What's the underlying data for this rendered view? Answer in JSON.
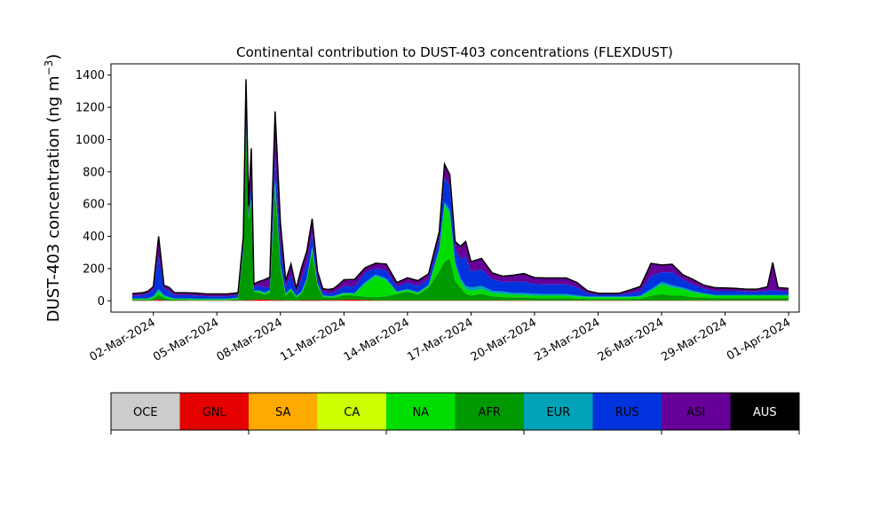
{
  "chart_data": {
    "type": "area",
    "stacked": true,
    "title": "Continental contribution to DUST-403 concentrations (FLEXDUST)",
    "ylabel": "DUST-403 concentration (ng m",
    "ylabel_sup": "−3",
    "ylabel_close": ")",
    "ylim": [
      -70,
      1470
    ],
    "yticks": [
      0,
      200,
      400,
      600,
      800,
      1000,
      1200,
      1400
    ],
    "xlim": [
      "2024-02-29T00:00",
      "2024-04-01T12:00"
    ],
    "xticks": [
      "2024-03-02",
      "2024-03-05",
      "2024-03-08",
      "2024-03-11",
      "2024-03-14",
      "2024-03-17",
      "2024-03-20",
      "2024-03-23",
      "2024-03-26",
      "2024-03-29",
      "2024-04-01"
    ],
    "xtick_labels": [
      "02-Mar-2024",
      "05-Mar-2024",
      "08-Mar-2024",
      "11-Mar-2024",
      "14-Mar-2024",
      "17-Mar-2024",
      "20-Mar-2024",
      "23-Mar-2024",
      "26-Mar-2024",
      "29-Mar-2024",
      "01-Apr-2024"
    ],
    "grid": false,
    "legend_position": "bottom-colorbar",
    "series_names": [
      "OCE",
      "GNL",
      "SA",
      "CA",
      "NA",
      "AFR",
      "EUR",
      "RUS",
      "ASI",
      "AUS"
    ],
    "series_colors": [
      "#cccccc",
      "#e50000",
      "#ffaa00",
      "#ccff00",
      "#00dd00",
      "#009900",
      "#00a3b8",
      "#0033dd",
      "#660099",
      "#000000"
    ],
    "legend_text_colors": [
      "#000000",
      "#000000",
      "#000000",
      "#000000",
      "#000000",
      "#000000",
      "#000000",
      "#000000",
      "#000000",
      "#ffffff"
    ],
    "stack_order": [
      "GNL",
      "AFR",
      "NA",
      "EUR",
      "RUS",
      "ASI"
    ],
    "x": [
      "2024-03-01T00:00",
      "2024-03-01T12:00",
      "2024-03-01T18:00",
      "2024-03-02T00:00",
      "2024-03-02T06:00",
      "2024-03-02T12:00",
      "2024-03-02T18:00",
      "2024-03-03T00:00",
      "2024-03-03T12:00",
      "2024-03-04T00:00",
      "2024-03-04T12:00",
      "2024-03-05T00:00",
      "2024-03-05T12:00",
      "2024-03-06T00:00",
      "2024-03-06T06:00",
      "2024-03-06T09:00",
      "2024-03-06T12:00",
      "2024-03-06T15:00",
      "2024-03-06T18:00",
      "2024-03-07T00:00",
      "2024-03-07T06:00",
      "2024-03-07T12:00",
      "2024-03-07T18:00",
      "2024-03-08T00:00",
      "2024-03-08T06:00",
      "2024-03-08T12:00",
      "2024-03-08T18:00",
      "2024-03-09T00:00",
      "2024-03-09T06:00",
      "2024-03-09T12:00",
      "2024-03-09T18:00",
      "2024-03-10T00:00",
      "2024-03-10T06:00",
      "2024-03-10T12:00",
      "2024-03-10T18:00",
      "2024-03-11T00:00",
      "2024-03-11T12:00",
      "2024-03-12T00:00",
      "2024-03-12T12:00",
      "2024-03-13T00:00",
      "2024-03-13T12:00",
      "2024-03-14T00:00",
      "2024-03-14T12:00",
      "2024-03-15T00:00",
      "2024-03-15T12:00",
      "2024-03-15T18:00",
      "2024-03-16T00:00",
      "2024-03-16T06:00",
      "2024-03-16T12:00",
      "2024-03-16T18:00",
      "2024-03-17T00:00",
      "2024-03-17T12:00",
      "2024-03-18T00:00",
      "2024-03-18T12:00",
      "2024-03-19T00:00",
      "2024-03-19T12:00",
      "2024-03-20T00:00",
      "2024-03-20T12:00",
      "2024-03-21T00:00",
      "2024-03-21T12:00",
      "2024-03-22T00:00",
      "2024-03-22T12:00",
      "2024-03-23T00:00",
      "2024-03-23T12:00",
      "2024-03-24T00:00",
      "2024-03-24T12:00",
      "2024-03-25T00:00",
      "2024-03-25T12:00",
      "2024-03-26T00:00",
      "2024-03-26T12:00",
      "2024-03-27T00:00",
      "2024-03-27T12:00",
      "2024-03-28T00:00",
      "2024-03-28T12:00",
      "2024-03-29T00:00",
      "2024-03-29T12:00",
      "2024-03-30T00:00",
      "2024-03-30T12:00",
      "2024-03-31T00:00",
      "2024-03-31T06:00",
      "2024-03-31T12:00",
      "2024-04-01T00:00"
    ],
    "series": [
      {
        "name": "GNL",
        "values": [
          2,
          2,
          2,
          3,
          8,
          3,
          2,
          2,
          2,
          2,
          2,
          2,
          2,
          2,
          3,
          4,
          5,
          6,
          5,
          10,
          8,
          6,
          5,
          4,
          3,
          3,
          3,
          4,
          4,
          4,
          4,
          5,
          5,
          5,
          5,
          6,
          8,
          5,
          3,
          3,
          3,
          3,
          3,
          3,
          3,
          3,
          3,
          3,
          3,
          3,
          3,
          3,
          3,
          3,
          2,
          2,
          2,
          2,
          2,
          2,
          2,
          2,
          2,
          2,
          2,
          2,
          2,
          2,
          2,
          2,
          2,
          2,
          2,
          2,
          2,
          2,
          2,
          2,
          2,
          2,
          2,
          2
        ]
      },
      {
        "name": "AFR",
        "values": [
          5,
          5,
          5,
          10,
          30,
          15,
          8,
          5,
          5,
          3,
          3,
          3,
          3,
          10,
          300,
          1050,
          500,
          600,
          50,
          40,
          30,
          45,
          700,
          200,
          30,
          60,
          15,
          40,
          120,
          300,
          90,
          20,
          15,
          15,
          20,
          30,
          25,
          20,
          20,
          25,
          40,
          55,
          35,
          80,
          180,
          240,
          260,
          120,
          80,
          40,
          30,
          40,
          25,
          20,
          20,
          20,
          15,
          15,
          15,
          15,
          12,
          10,
          10,
          10,
          10,
          10,
          12,
          30,
          40,
          30,
          30,
          20,
          20,
          15,
          15,
          15,
          15,
          15,
          15,
          15,
          15,
          15
        ]
      },
      {
        "name": "NA",
        "values": [
          5,
          5,
          5,
          10,
          20,
          10,
          8,
          5,
          5,
          5,
          5,
          5,
          5,
          5,
          10,
          30,
          10,
          20,
          5,
          10,
          8,
          10,
          30,
          10,
          8,
          10,
          8,
          8,
          10,
          20,
          10,
          5,
          5,
          5,
          10,
          10,
          10,
          80,
          130,
          100,
          10,
          10,
          10,
          10,
          130,
          350,
          280,
          100,
          40,
          30,
          30,
          30,
          20,
          20,
          15,
          15,
          15,
          15,
          15,
          15,
          12,
          10,
          10,
          10,
          10,
          10,
          12,
          30,
          60,
          50,
          40,
          30,
          20,
          15,
          15,
          15,
          15,
          15,
          15,
          15,
          15,
          15
        ]
      },
      {
        "name": "EUR",
        "values": [
          3,
          3,
          3,
          5,
          15,
          8,
          5,
          3,
          3,
          3,
          3,
          3,
          3,
          3,
          5,
          10,
          5,
          10,
          5,
          5,
          5,
          5,
          20,
          10,
          5,
          5,
          5,
          5,
          5,
          10,
          5,
          5,
          5,
          5,
          5,
          5,
          5,
          10,
          10,
          10,
          5,
          5,
          5,
          5,
          10,
          20,
          20,
          20,
          20,
          20,
          20,
          20,
          15,
          15,
          12,
          12,
          12,
          10,
          10,
          10,
          8,
          5,
          5,
          5,
          5,
          5,
          5,
          10,
          15,
          15,
          10,
          10,
          5,
          5,
          5,
          5,
          5,
          5,
          5,
          5,
          5,
          5
        ]
      },
      {
        "name": "RUS",
        "values": [
          15,
          20,
          30,
          40,
          200,
          40,
          40,
          20,
          20,
          20,
          15,
          15,
          15,
          15,
          30,
          80,
          30,
          80,
          20,
          30,
          30,
          20,
          150,
          120,
          40,
          80,
          25,
          80,
          100,
          80,
          30,
          20,
          20,
          20,
          30,
          40,
          40,
          60,
          40,
          50,
          30,
          40,
          40,
          40,
          60,
          150,
          150,
          80,
          120,
          180,
          100,
          100,
          70,
          60,
          70,
          70,
          60,
          60,
          60,
          60,
          50,
          20,
          10,
          10,
          10,
          20,
          30,
          80,
          60,
          80,
          50,
          40,
          30,
          25,
          25,
          25,
          20,
          20,
          25,
          30,
          25,
          20
        ]
      },
      {
        "name": "ASI",
        "values": [
          15,
          15,
          15,
          20,
          127,
          20,
          20,
          15,
          15,
          15,
          15,
          15,
          15,
          15,
          52,
          200,
          40,
          230,
          20,
          25,
          50,
          60,
          270,
          140,
          40,
          70,
          20,
          70,
          70,
          95,
          45,
          20,
          20,
          25,
          30,
          40,
          45,
          30,
          30,
          40,
          25,
          30,
          32,
          30,
          45,
          85,
          70,
          45,
          75,
          95,
          60,
          70,
          40,
          35,
          40,
          50,
          40,
          40,
          40,
          40,
          30,
          15,
          10,
          10,
          10,
          20,
          28,
          80,
          45,
          50,
          30,
          30,
          20,
          20,
          18,
          15,
          15,
          15,
          25,
          170,
          20,
          20
        ]
      }
    ]
  }
}
